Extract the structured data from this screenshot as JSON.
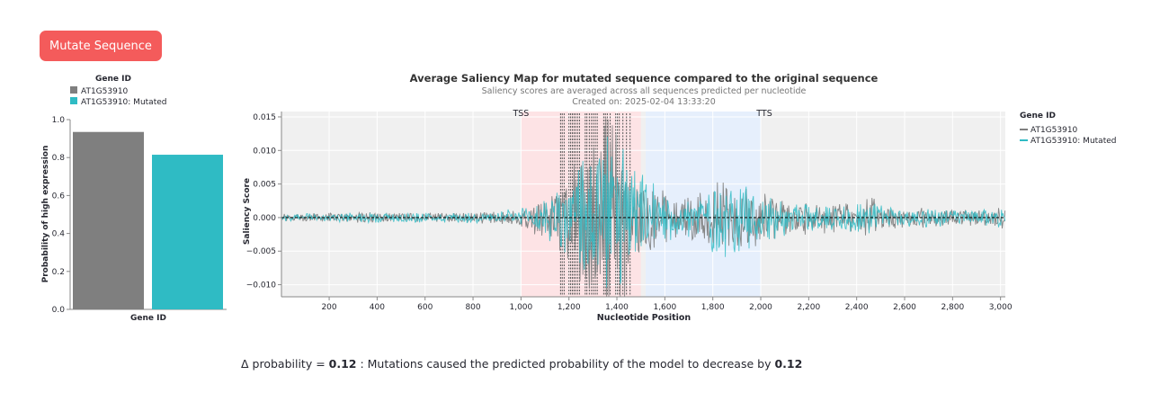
{
  "button": {
    "label": "Mutate Sequence"
  },
  "bar_chart": {
    "legend_title": "Gene ID",
    "ylabel": "Probability of high expression",
    "xlabel": "Gene ID",
    "yticks": [
      "0.0",
      "0.2",
      "0.4",
      "0.6",
      "0.8",
      "1.0"
    ]
  },
  "line_chart": {
    "title": "Average Saliency Map for mutated sequence compared to the original sequence",
    "subtitle": "Saliency scores are averaged across all sequences predicted per nucleotide",
    "created": "Created on: 2025-02-04 13:33:20",
    "ylabel": "Saliency Score",
    "xlabel": "Nucleotide Position",
    "legend_title": "Gene ID",
    "tss_label": "TSS",
    "tts_label": "TTS",
    "yticks": [
      "0.015",
      "0.010",
      "0.005",
      "0.000",
      "−0.005",
      "−0.010"
    ],
    "xticks": [
      "200",
      "400",
      "600",
      "800",
      "1,000",
      "1,200",
      "1,400",
      "1,600",
      "1,800",
      "2,000",
      "2,200",
      "2,400",
      "2,600",
      "2,800",
      "3,000"
    ]
  },
  "delta": {
    "prefix": "Δ probability = ",
    "value": "0.12",
    "middle": " : Mutations caused the predicted probability of the model to decrease by ",
    "value2": "0.12"
  },
  "colors": {
    "original": "#7f7f7f",
    "mutated": "#2fbbc4",
    "button": "#f45b5b",
    "tss_region": "#fde3e5",
    "tts_region": "#e6effc"
  },
  "chart_data": [
    {
      "type": "bar",
      "categories": [
        "AT1G53910",
        "AT1G53910: Mutated"
      ],
      "values": [
        0.935,
        0.815
      ],
      "ylim": [
        0,
        1
      ],
      "xlabel": "Gene ID",
      "ylabel": "Probability of high expression",
      "legend": [
        "AT1G53910",
        "AT1G53910: Mutated"
      ],
      "legend_position": "top"
    },
    {
      "type": "line",
      "title": "Average Saliency Map for mutated sequence compared to the original sequence",
      "subtitle": "Saliency scores are averaged across all sequences predicted per nucleotide",
      "xlabel": "Nucleotide Position",
      "ylabel": "Saliency Score",
      "xlim": [
        1,
        3020
      ],
      "ylim": [
        -0.0118,
        0.0158
      ],
      "grid": true,
      "legend_position": "top-right",
      "regions": [
        {
          "label": "TSS",
          "x": [
            1000,
            1500
          ]
        },
        {
          "label": "TTS",
          "x": [
            1520,
            2000
          ]
        }
      ],
      "mutation_positions": [
        1165,
        1172,
        1180,
        1200,
        1207,
        1214,
        1221,
        1228,
        1236,
        1244,
        1268,
        1275,
        1285,
        1294,
        1302,
        1310,
        1318,
        1345,
        1352,
        1360,
        1372,
        1395,
        1402,
        1410,
        1425,
        1440,
        1455
      ],
      "series": [
        {
          "name": "AT1G53910",
          "x": [
            1,
            100,
            200,
            300,
            400,
            500,
            600,
            700,
            800,
            900,
            950,
            1000,
            1050,
            1100,
            1150,
            1200,
            1250,
            1300,
            1350,
            1400,
            1450,
            1500,
            1550,
            1600,
            1650,
            1700,
            1750,
            1800,
            1850,
            1900,
            1950,
            2000,
            2100,
            2200,
            2300,
            2400,
            2450,
            2500,
            2600,
            2700,
            2800,
            2900,
            3000
          ],
          "amplitude": [
            0.0004,
            0.0005,
            0.0005,
            0.0006,
            0.0006,
            0.0006,
            0.0006,
            0.0006,
            0.0007,
            0.0007,
            0.0009,
            0.0012,
            0.0018,
            0.0025,
            0.004,
            0.006,
            0.009,
            0.011,
            0.012,
            0.011,
            0.009,
            0.006,
            0.004,
            0.003,
            0.0025,
            0.003,
            0.0035,
            0.004,
            0.0045,
            0.004,
            0.0035,
            0.003,
            0.0022,
            0.002,
            0.0018,
            0.0018,
            0.0025,
            0.0018,
            0.0012,
            0.0012,
            0.001,
            0.001,
            0.0012
          ]
        },
        {
          "name": "AT1G53910: Mutated",
          "x": [
            1,
            100,
            200,
            300,
            400,
            500,
            600,
            700,
            800,
            900,
            950,
            1000,
            1050,
            1100,
            1150,
            1200,
            1250,
            1300,
            1350,
            1400,
            1450,
            1500,
            1550,
            1600,
            1650,
            1700,
            1750,
            1800,
            1850,
            1900,
            1950,
            2000,
            2100,
            2200,
            2300,
            2400,
            2450,
            2500,
            2600,
            2700,
            2800,
            2900,
            3000
          ],
          "amplitude": [
            0.0004,
            0.0005,
            0.0005,
            0.0006,
            0.0006,
            0.0006,
            0.0006,
            0.0006,
            0.0007,
            0.0007,
            0.0009,
            0.0012,
            0.0017,
            0.0023,
            0.0037,
            0.0055,
            0.008,
            0.0095,
            0.0105,
            0.0095,
            0.008,
            0.0055,
            0.0038,
            0.003,
            0.0025,
            0.003,
            0.0035,
            0.0045,
            0.0045,
            0.004,
            0.0035,
            0.003,
            0.0022,
            0.002,
            0.0018,
            0.0018,
            0.0025,
            0.0018,
            0.0012,
            0.0012,
            0.001,
            0.001,
            0.0012
          ]
        }
      ]
    }
  ]
}
